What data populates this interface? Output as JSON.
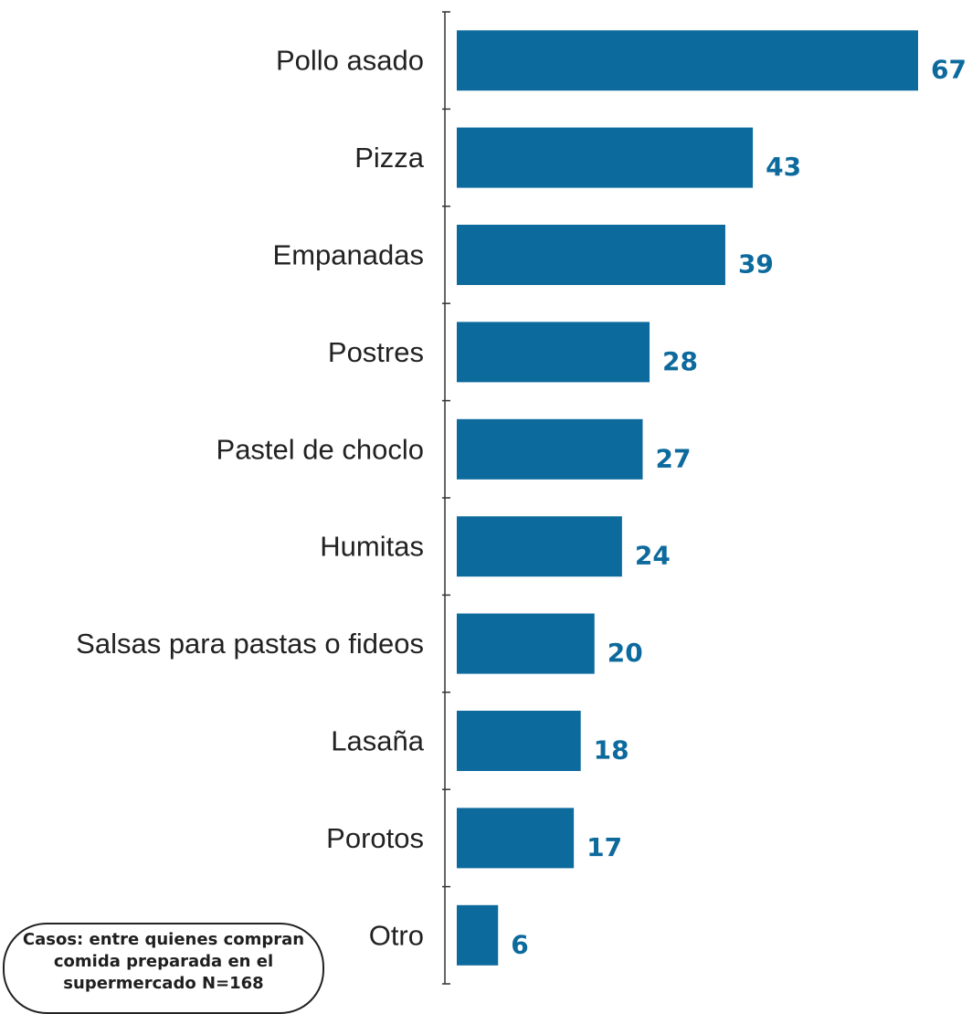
{
  "chart_data": {
    "type": "bar",
    "orientation": "horizontal",
    "categories": [
      "Pollo asado",
      "Pizza",
      "Empanadas",
      "Postres",
      "Pastel de choclo",
      "Humitas",
      "Salsas para pastas o fideos",
      "Lasaña",
      "Porotos",
      "Otro"
    ],
    "values": [
      67,
      43,
      39,
      28,
      27,
      24,
      20,
      18,
      17,
      6
    ],
    "value_labels": [
      "67",
      "43",
      "39",
      "28",
      "27",
      "24",
      "20",
      "18",
      "17",
      "6"
    ],
    "xlim": [
      0,
      67
    ],
    "bar_color": "#0d6a9d",
    "label_color": "#0d6a9d",
    "grid": false
  },
  "note": {
    "lines": [
      "Casos: entre quienes compran",
      "comida preparada en el",
      "supermercado N=168"
    ]
  }
}
